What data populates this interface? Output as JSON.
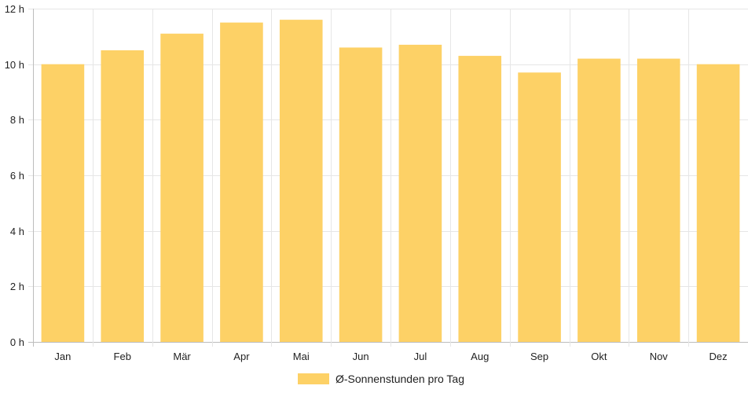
{
  "chart_data": {
    "type": "bar",
    "categories": [
      "Jan",
      "Feb",
      "Mär",
      "Apr",
      "Mai",
      "Jun",
      "Jul",
      "Aug",
      "Sep",
      "Okt",
      "Nov",
      "Dez"
    ],
    "series": [
      {
        "name": "Ø-Sonnenstunden pro Tag",
        "values": [
          10.0,
          10.5,
          11.1,
          11.5,
          11.6,
          10.6,
          10.7,
          10.3,
          9.7,
          10.2,
          10.2,
          10.0
        ],
        "color": "#FDD166"
      }
    ],
    "ylim": [
      0,
      12
    ],
    "y_ticks": [
      0,
      2,
      4,
      6,
      8,
      10,
      12
    ],
    "y_tick_suffix": " h",
    "grid": true,
    "legend_position": "bottom"
  }
}
